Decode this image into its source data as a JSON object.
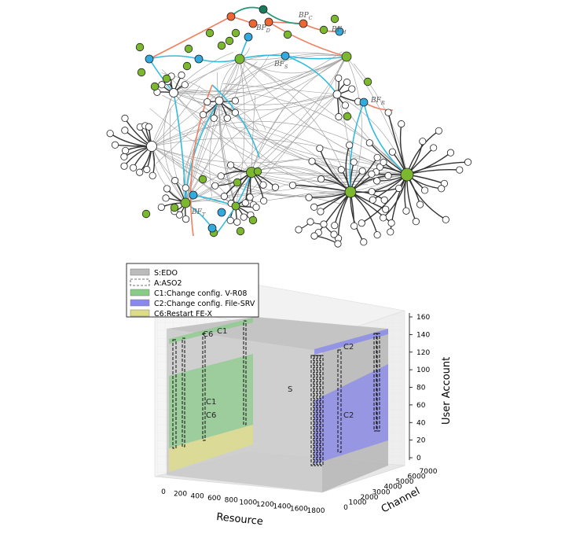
{
  "network": {
    "colors": {
      "plain_node": "#ffffff",
      "green_node": "#7cb82f",
      "cyan_node": "#33aadd",
      "orange_node": "#ee6633",
      "teal_node": "#1b7a5a",
      "edge_gray": "#888888",
      "edge_dark": "#333333",
      "edge_cyan": "#33bbdd",
      "edge_orange": "#f08060",
      "edge_teal": "#229977"
    },
    "labels": [
      {
        "id": "bp-c",
        "text": "BP",
        "sub": "C"
      },
      {
        "id": "bp-d",
        "text": "BP",
        "sub": "D"
      },
      {
        "id": "bf-h",
        "text": "BF",
        "sub": "H"
      },
      {
        "id": "bf-s",
        "text": "BF",
        "sub": "S"
      },
      {
        "id": "bf-r",
        "text": "BF",
        "sub": "R"
      },
      {
        "id": "bf-t",
        "text": "BF",
        "sub": "T"
      }
    ]
  },
  "chart_data": {
    "type": "3d-regions",
    "legend": [
      {
        "label": "S:EDO",
        "style": "gray-fill",
        "color": "#bbbbbb"
      },
      {
        "label": "A:ASO2",
        "style": "dashed-outline",
        "color": "#ffffff"
      },
      {
        "label": "C1:Change config. V-R08",
        "style": "fill",
        "color": "#88cc88"
      },
      {
        "label": "C2:Change config. File-SRV",
        "style": "fill",
        "color": "#8888ee"
      },
      {
        "label": "C6:Restart FE-X",
        "style": "fill",
        "color": "#dddd88"
      }
    ],
    "axes": {
      "x": {
        "label": "Resource",
        "ticks": [
          "0",
          "200",
          "400",
          "600",
          "800",
          "1000",
          "1200",
          "1400",
          "1600",
          "1800"
        ],
        "range": [
          0,
          1800
        ]
      },
      "y": {
        "label": "Channel",
        "ticks": [
          "0",
          "1000",
          "2000",
          "3000",
          "4000",
          "5000",
          "6000",
          "7000"
        ],
        "range": [
          0,
          7000
        ]
      },
      "z": {
        "label": "User Account",
        "ticks": [
          "0",
          "20",
          "40",
          "60",
          "80",
          "100",
          "120",
          "140",
          "160"
        ],
        "range": [
          0,
          160
        ]
      }
    },
    "region_labels": [
      {
        "text": "C1"
      },
      {
        "text": "C6"
      },
      {
        "text": "C1"
      },
      {
        "text": "C6"
      },
      {
        "text": "S"
      },
      {
        "text": "C2"
      },
      {
        "text": "C2"
      }
    ]
  }
}
